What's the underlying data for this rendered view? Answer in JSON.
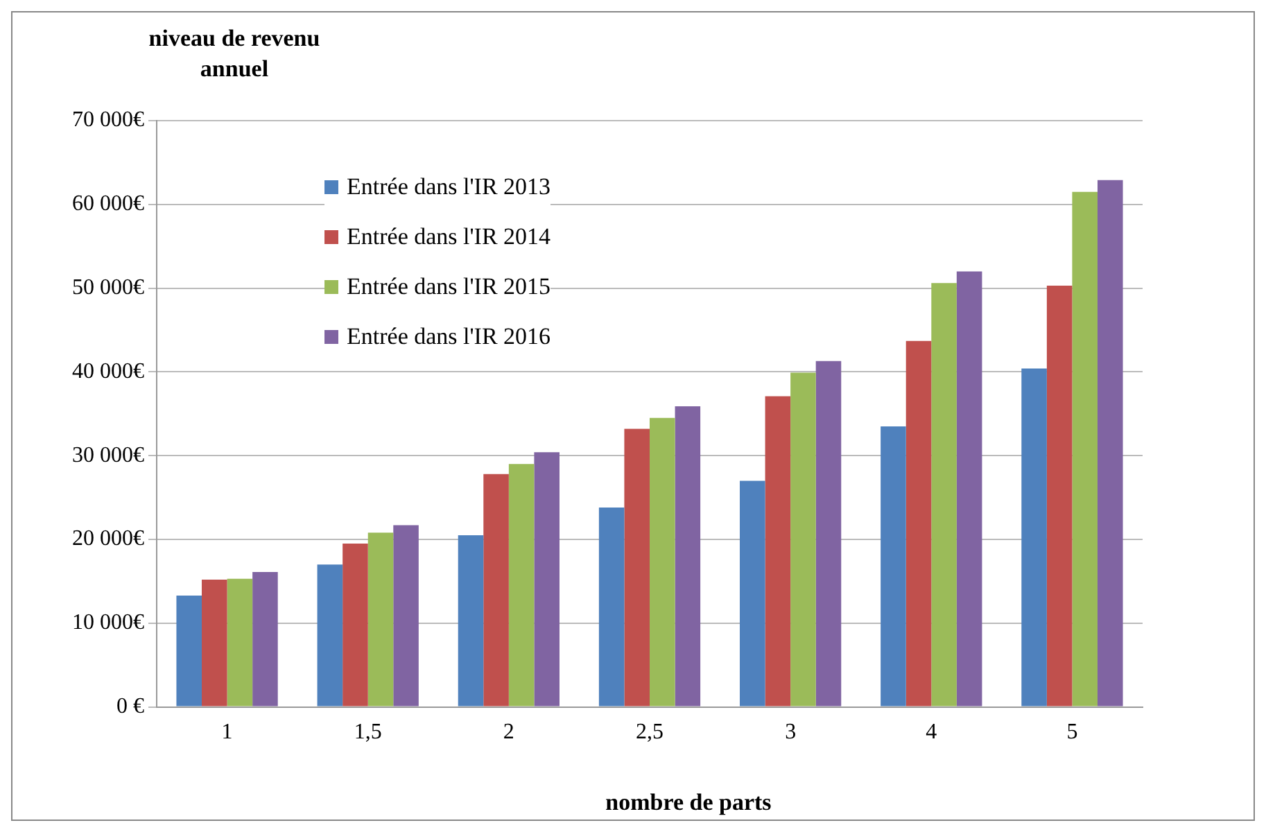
{
  "chart_data": {
    "type": "bar",
    "ylabel": "niveau de revenu annuel",
    "xlabel": "nombre de parts",
    "categories": [
      "1",
      "1,5",
      "2",
      "2,5",
      "3",
      "4",
      "5"
    ],
    "series": [
      {
        "name": "Entrée dans l'IR 2013",
        "color": "#4f81bd",
        "values": [
          13300,
          17000,
          20500,
          23800,
          27000,
          33500,
          40400
        ]
      },
      {
        "name": "Entrée dans l'IR 2014",
        "color": "#c0504d",
        "values": [
          15200,
          19500,
          27800,
          33200,
          37100,
          43700,
          50300
        ]
      },
      {
        "name": "Entrée dans l'IR 2015",
        "color": "#9bbb59",
        "values": [
          15300,
          20800,
          29000,
          34500,
          39900,
          50600,
          61500
        ]
      },
      {
        "name": "Entrée dans l'IR 2016",
        "color": "#8064a2",
        "values": [
          16100,
          21700,
          30400,
          35900,
          41300,
          52000,
          62900
        ]
      }
    ],
    "ylim": [
      0,
      70000
    ],
    "yticks": [
      {
        "value": 0,
        "label": "0 €"
      },
      {
        "value": 10000,
        "label": "10 000€"
      },
      {
        "value": 20000,
        "label": "20 000€"
      },
      {
        "value": 30000,
        "label": "30 000€"
      },
      {
        "value": 40000,
        "label": "40 000€"
      },
      {
        "value": 50000,
        "label": "50 000€"
      },
      {
        "value": 60000,
        "label": "60 000€"
      },
      {
        "value": 70000,
        "label": "70 000€"
      }
    ],
    "grid": "y",
    "legend": "top left"
  }
}
